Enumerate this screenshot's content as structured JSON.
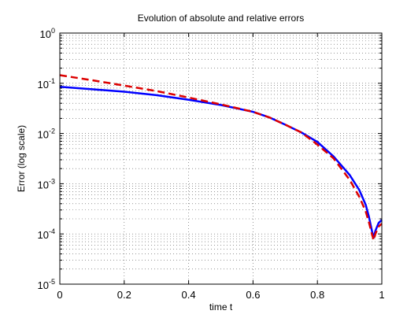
{
  "chart_data": {
    "type": "line",
    "title": "Evolution of absolute and relative errors",
    "xlabel": "time t",
    "ylabel": "Error (log scale)",
    "xlim": [
      0,
      1
    ],
    "ylim": [
      1e-05,
      1
    ],
    "yscale": "log",
    "grid": true,
    "x_ticks": [
      "0",
      "0.2",
      "0.4",
      "0.6",
      "0.8",
      "1"
    ],
    "y_tick_bases": [
      "10",
      "10",
      "10",
      "10",
      "10",
      "10"
    ],
    "y_tick_exponents": [
      "0",
      "-1",
      "-2",
      "-3",
      "-4",
      "-5"
    ],
    "series": [
      {
        "color": "#0000ff",
        "style": "solid",
        "x": [
          0,
          0.1,
          0.2,
          0.3,
          0.4,
          0.5,
          0.6,
          0.65,
          0.7,
          0.75,
          0.8,
          0.85,
          0.9,
          0.93,
          0.95,
          0.96,
          0.97,
          0.975,
          0.98,
          0.99,
          1.0
        ],
        "y": [
          0.085,
          0.076,
          0.068,
          0.058,
          0.047,
          0.037,
          0.027,
          0.021,
          0.015,
          0.0105,
          0.0068,
          0.0035,
          0.0015,
          0.00075,
          0.00038,
          0.00022,
          0.00011,
          8.5e-05,
          0.000115,
          0.000165,
          0.00019
        ]
      },
      {
        "color": "#dd0000",
        "style": "dashed",
        "x": [
          0,
          0.1,
          0.2,
          0.3,
          0.4,
          0.5,
          0.6,
          0.65,
          0.7,
          0.75,
          0.8,
          0.85,
          0.9,
          0.93,
          0.95,
          0.96,
          0.97,
          0.975,
          0.98,
          0.99,
          1.0
        ],
        "y": [
          0.145,
          0.115,
          0.09,
          0.07,
          0.052,
          0.038,
          0.027,
          0.021,
          0.015,
          0.0105,
          0.006,
          0.0032,
          0.0012,
          0.00055,
          0.00028,
          0.00017,
          9.5e-05,
          7.5e-05,
          0.0001,
          0.00014,
          0.00016
        ]
      }
    ]
  }
}
